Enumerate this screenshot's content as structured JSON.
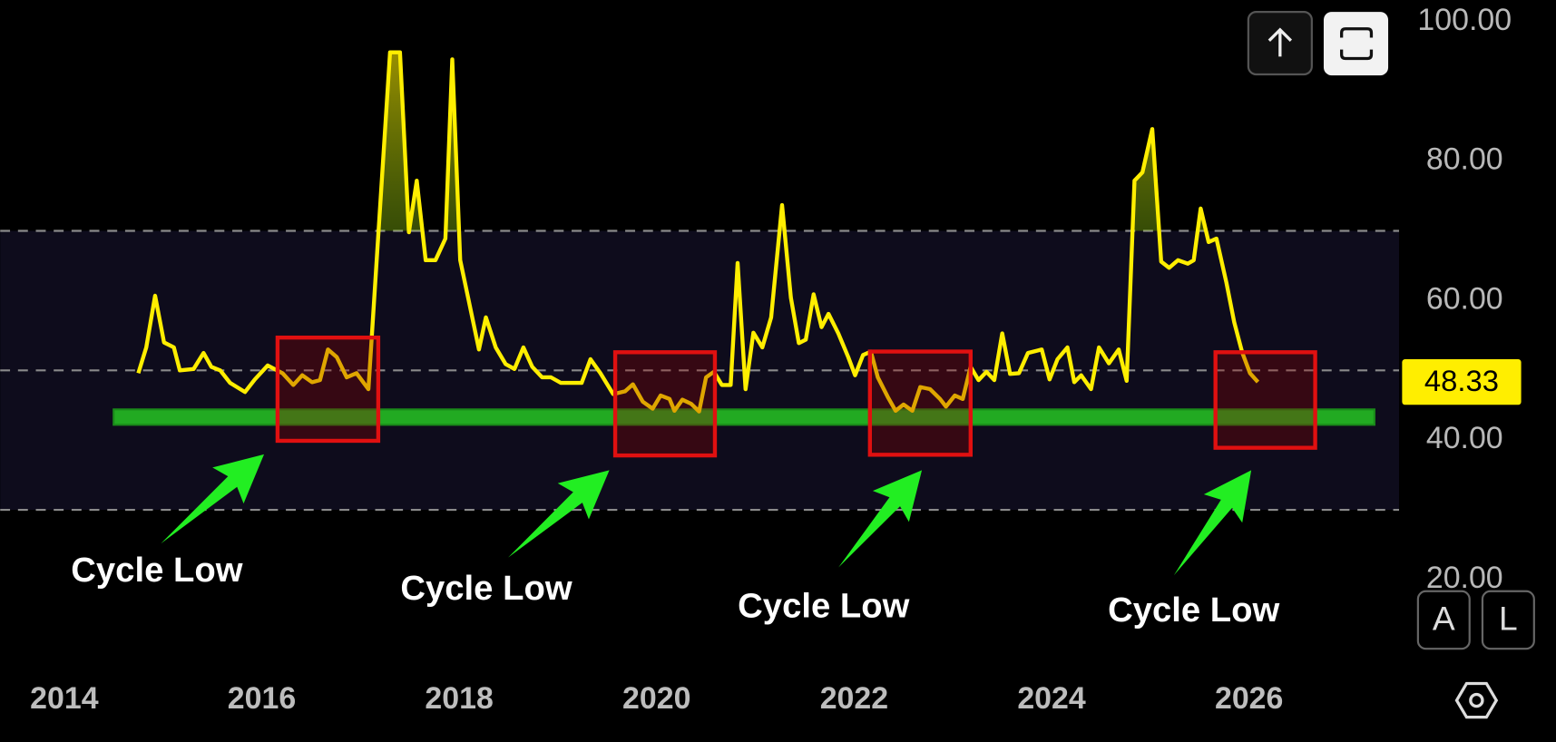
{
  "chart_data": {
    "type": "line",
    "x": [
      2014.75,
      2014.83,
      2014.92,
      2015.01,
      2015.11,
      2015.17,
      2015.31,
      2015.41,
      2015.49,
      2015.58,
      2015.68,
      2015.83,
      2015.93,
      2016.06,
      2016.21,
      2016.32,
      2016.41,
      2016.51,
      2016.59,
      2016.67,
      2016.76,
      2016.86,
      2016.96,
      2017.08,
      2017.18,
      2017.3,
      2017.4,
      2017.49,
      2017.57,
      2017.66,
      2017.76,
      2017.86,
      2017.93,
      2018.01,
      2018.09,
      2018.2,
      2018.27,
      2018.37,
      2018.47,
      2018.56,
      2018.65,
      2018.74,
      2018.84,
      2018.93,
      2019.03,
      2019.24,
      2019.33,
      2019.43,
      2019.56,
      2019.68,
      2019.76,
      2019.86,
      2019.96,
      2020.04,
      2020.13,
      2020.18,
      2020.26,
      2020.35,
      2020.43,
      2020.5,
      2020.58,
      2020.66,
      2020.75,
      2020.82,
      2020.9,
      2020.98,
      2021.07,
      2021.16,
      2021.27,
      2021.36,
      2021.44,
      2021.51,
      2021.59,
      2021.67,
      2021.74,
      2021.84,
      2021.94,
      2022.01,
      2022.09,
      2022.17,
      2022.24,
      2022.34,
      2022.42,
      2022.5,
      2022.59,
      2022.67,
      2022.77,
      2022.87,
      2022.93,
      2023.02,
      2023.1,
      2023.18,
      2023.26,
      2023.34,
      2023.42,
      2023.5,
      2023.58,
      2023.67,
      2023.76,
      2023.9,
      2023.98,
      2024.06,
      2024.16,
      2024.23,
      2024.3,
      2024.4,
      2024.48,
      2024.58,
      2024.68,
      2024.76,
      2024.84,
      2024.92,
      2025.02,
      2025.11,
      2025.19,
      2025.28,
      2025.38,
      2025.44,
      2025.51,
      2025.59,
      2025.67,
      2025.77,
      2025.85,
      2025.93,
      2026.01,
      2026.09
    ],
    "series": [
      {
        "color": "#ffee00",
        "values": [
          49.6,
          53.3,
          60.7,
          54.0,
          53.3,
          50.0,
          50.2,
          52.5,
          50.5,
          50.0,
          48.2,
          46.9,
          48.7,
          50.7,
          49.6,
          47.9,
          49.3,
          48.3,
          48.6,
          53.0,
          51.9,
          49.0,
          49.6,
          47.3,
          69.3,
          95.6,
          95.6,
          69.8,
          77.2,
          65.8,
          65.8,
          68.9,
          94.6,
          65.8,
          60.4,
          53.0,
          57.6,
          53.3,
          50.9,
          50.2,
          53.3,
          50.5,
          49.0,
          49.0,
          48.2,
          48.2,
          51.6,
          49.6,
          46.6,
          47.0,
          48.0,
          45.5,
          44.5,
          46.4,
          45.9,
          44.2,
          45.8,
          45.2,
          44.1,
          49.0,
          49.8,
          47.9,
          47.9,
          65.4,
          47.3,
          55.4,
          53.3,
          57.6,
          73.7,
          60.4,
          53.9,
          54.4,
          60.9,
          56.2,
          58.1,
          55.3,
          51.9,
          49.3,
          52.2,
          52.7,
          49.0,
          46.2,
          44.2,
          45.1,
          44.2,
          47.6,
          47.3,
          45.9,
          44.8,
          46.4,
          45.9,
          50.5,
          48.6,
          49.8,
          48.6,
          55.3,
          49.5,
          49.6,
          52.5,
          53.0,
          48.7,
          51.6,
          53.3,
          48.3,
          49.3,
          47.3,
          53.3,
          51.0,
          53.0,
          48.5,
          77.2,
          78.4,
          84.6,
          65.6,
          64.7,
          65.8,
          65.3,
          65.8,
          73.2,
          68.4,
          68.9,
          62.6,
          56.9,
          52.6,
          49.6,
          48.33
        ]
      }
    ],
    "xlim": [
      2013.35,
      2027.52
    ],
    "ylim": [
      19.9,
      103.1
    ],
    "xticks": [
      2014,
      2016,
      2018,
      2020,
      2022,
      2024,
      2026
    ],
    "yticks": [
      {
        "value": 20,
        "label": "20.00"
      },
      {
        "value": 40,
        "label": "40.00"
      },
      {
        "value": 60,
        "label": "60.00"
      },
      {
        "value": 80,
        "label": "80.00"
      },
      {
        "value": 100,
        "label": "100.00"
      }
    ],
    "band": [
      30,
      70
    ],
    "band_lines": [
      70,
      50,
      30
    ],
    "support": {
      "x": [
        2014.5,
        2027.27
      ],
      "y": [
        42.2,
        44.4
      ],
      "color": "#22aa22"
    },
    "annotations": [
      {
        "text": "Cycle Low",
        "box_x": [
          2016.16,
          2017.18
        ],
        "box_y": [
          39.9,
          54.7
        ]
      },
      {
        "text": "Cycle Low",
        "box_x": [
          2019.58,
          2020.59
        ],
        "box_y": [
          37.8,
          52.6
        ]
      },
      {
        "text": "Cycle Low",
        "box_x": [
          2022.16,
          2023.18
        ],
        "box_y": [
          37.9,
          52.7
        ]
      },
      {
        "text": "Cycle Low",
        "box_x": [
          2025.66,
          2026.67
        ],
        "box_y": [
          38.9,
          52.6
        ]
      }
    ]
  },
  "controls": {
    "auto": "A",
    "log": "L"
  }
}
